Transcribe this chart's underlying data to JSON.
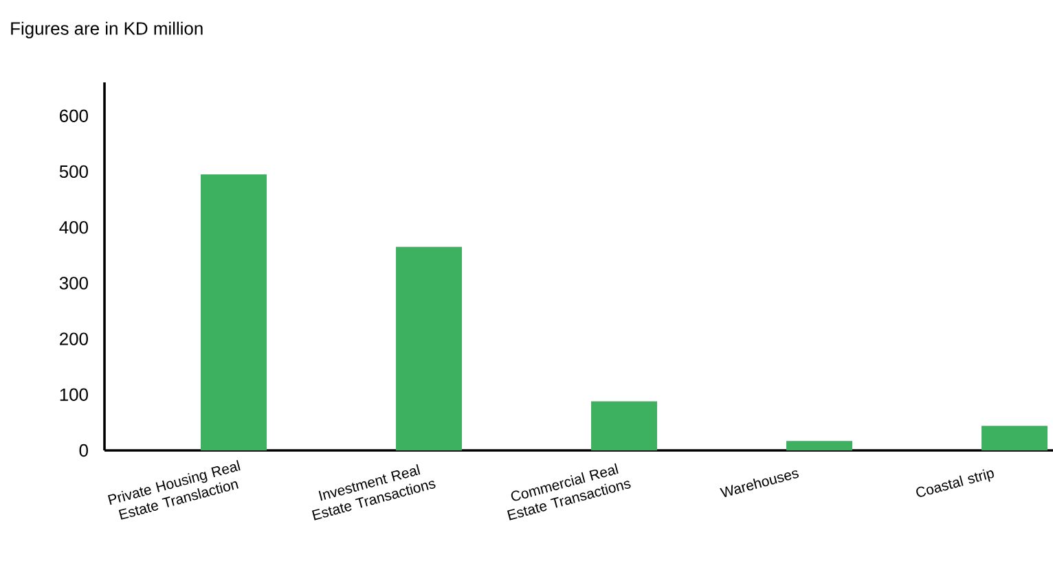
{
  "chart_data": {
    "type": "bar",
    "title": "Figures are in KD million",
    "categories": [
      "Private Housing Real Estate Translaction",
      "Investment Real Estate Transactions",
      "Commercial Real Estate Transactions",
      "Warehouses",
      "Coastal strip"
    ],
    "values": [
      495,
      365,
      88,
      17,
      44
    ],
    "color": "#3db160",
    "ylim": [
      0,
      660
    ],
    "yticks": [
      0,
      100,
      200,
      300,
      400,
      500,
      600
    ],
    "grid": false
  }
}
